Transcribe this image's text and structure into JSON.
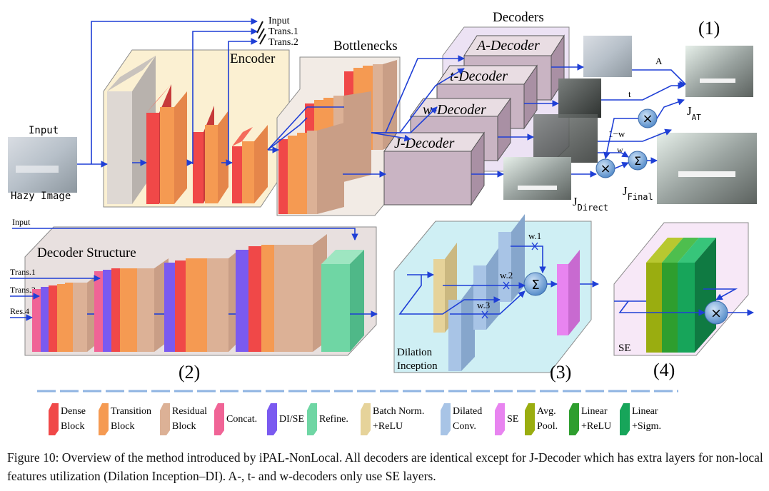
{
  "panel1": {
    "number": "(1)",
    "input_label": "Input",
    "hazy_label": "Hazy Image",
    "encoder_label": "Encoder",
    "bottlenecks_label": "Bottlenecks",
    "decoders_label": "Decoders",
    "outputs": [
      "Input",
      "Trans.1",
      "Trans.2"
    ],
    "decoders": [
      "A-Decoder",
      "t-Decoder",
      "w-Decoder",
      "J-Decoder"
    ],
    "map_labels": {
      "a": "A",
      "t": "t",
      "one_minus_w": "1−w",
      "w": "w"
    },
    "j_at": {
      "base": "J",
      "sub": "AT"
    },
    "j_direct": {
      "base": "J",
      "sub": "Direct"
    },
    "j_final": {
      "base": "J",
      "sub": "Final"
    },
    "ops": {
      "mul": "×",
      "sum": "Σ"
    }
  },
  "panel2": {
    "number": "(2)",
    "title": "Decoder Structure",
    "inputs": [
      "Input",
      "Trans.1",
      "Trans.2",
      "Res.4"
    ]
  },
  "panel3": {
    "number": "(3)",
    "title_line1": "Dilation",
    "title_line2": "Inception",
    "weights": [
      "w.1",
      "w.2",
      "w.3"
    ]
  },
  "panel4": {
    "number": "(4)",
    "title": "SE"
  },
  "legend": [
    {
      "line1": "Dense",
      "line2": "Block",
      "color": "#f04848"
    },
    {
      "line1": "Transition",
      "line2": "Block",
      "color": "#f59a52"
    },
    {
      "line1": "Residual",
      "line2": "Block",
      "color": "#dcb196"
    },
    {
      "line1": "Concat.",
      "line2": "",
      "color": "#f06496"
    },
    {
      "line1": "DI/SE",
      "line2": "",
      "color": "#7a5af0"
    },
    {
      "line1": "Refine.",
      "line2": "",
      "color": "#6fd6a4"
    },
    {
      "line1": "Batch Norm.",
      "line2": "+ReLU",
      "color": "#e6d39a"
    },
    {
      "line1": "Dilated",
      "line2": "Conv.",
      "color": "#a8c4e6"
    },
    {
      "line1": "SE",
      "line2": "",
      "color": "#e884f0"
    },
    {
      "line1": "Avg.",
      "line2": "Pool.",
      "color": "#9aad10"
    },
    {
      "line1": "Linear",
      "line2": "+ReLU",
      "color": "#2e9e2e"
    },
    {
      "line1": "Linear",
      "line2": "+Sigm.",
      "color": "#17a55a"
    }
  ],
  "caption": "Figure 10: Overview of the method introduced by iPAL-NonLocal. All decoders are identical except for J-Decoder which has extra layers for non-local features utilization (Dilation Inception–DI). A-, t- and w-decoders only use SE layers."
}
